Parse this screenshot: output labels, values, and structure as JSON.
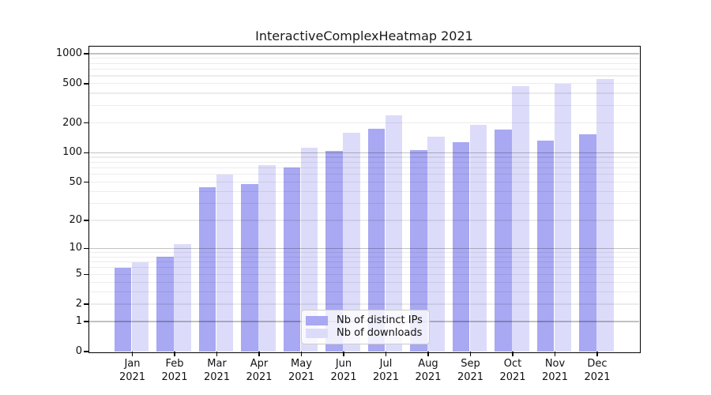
{
  "chart_data": {
    "type": "bar",
    "title": "InteractiveComplexHeatmap 2021",
    "categories": [
      "Jan",
      "Feb",
      "Mar",
      "Apr",
      "May",
      "Jun",
      "Jul",
      "Aug",
      "Sep",
      "Oct",
      "Nov",
      "Dec"
    ],
    "year_suffix": "2021",
    "series": [
      {
        "name": "Nb of distinct IPs",
        "color": "#a8a8f3",
        "values": [
          6,
          8,
          44,
          48,
          71,
          105,
          176,
          106,
          128,
          171,
          133,
          154
        ]
      },
      {
        "name": "Nb of downloads",
        "color": "#dcdcfa",
        "values": [
          7,
          11,
          60,
          74,
          113,
          160,
          240,
          146,
          192,
          475,
          499,
          557
        ]
      }
    ],
    "yticks": [
      0,
      1,
      2,
      5,
      10,
      20,
      50,
      100,
      200,
      500,
      1000
    ],
    "scale": "log10(value+1)",
    "ylim": [
      0,
      1180
    ],
    "grid": true,
    "legend_position": "lower-center",
    "axis_color": "#000000",
    "major_grid_color": "rgba(0,0,0,0.24)",
    "minor_grid_color": "rgba(0,0,0,0.075)",
    "background": "#ffffff"
  }
}
